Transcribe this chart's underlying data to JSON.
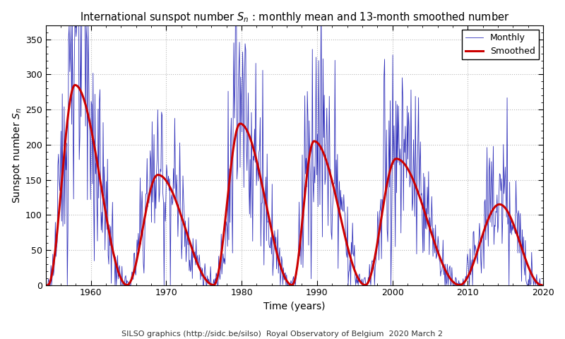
{
  "title": "International sunspot number $S_n$ : monthly mean and 13-month smoothed number",
  "xlabel": "Time (years)",
  "ylabel": "Sunspot number $S_n$",
  "footnote": "SILSO graphics (http://sidc.be/silso)  Royal Observatory of Belgium  2020 March 2",
  "xlim": [
    1954,
    2020
  ],
  "ylim": [
    0,
    370
  ],
  "yticks": [
    0,
    50,
    100,
    150,
    200,
    250,
    300,
    350
  ],
  "xticks": [
    1960,
    1970,
    1980,
    1990,
    2000,
    2010,
    2020
  ],
  "monthly_color": "#3333bb",
  "smoothed_color": "#cc0000",
  "bg_color": "#ffffff",
  "grid_color": "#888888",
  "legend_labels": [
    "Monthly",
    "Smoothed"
  ],
  "monthly_lw": 0.6,
  "smoothed_lw": 2.2,
  "cycle_minima": [
    1954.3,
    1964.8,
    1976.3,
    1986.7,
    1996.4,
    2008.9,
    2019.8
  ],
  "cycle_peaks": [
    {
      "year": 1957.9,
      "amplitude": 285
    },
    {
      "year": 1968.9,
      "amplitude": 157
    },
    {
      "year": 1979.8,
      "amplitude": 230
    },
    {
      "year": 1989.6,
      "amplitude": 205
    },
    {
      "year": 2000.5,
      "amplitude": 180
    },
    {
      "year": 2014.2,
      "amplitude": 115
    }
  ]
}
